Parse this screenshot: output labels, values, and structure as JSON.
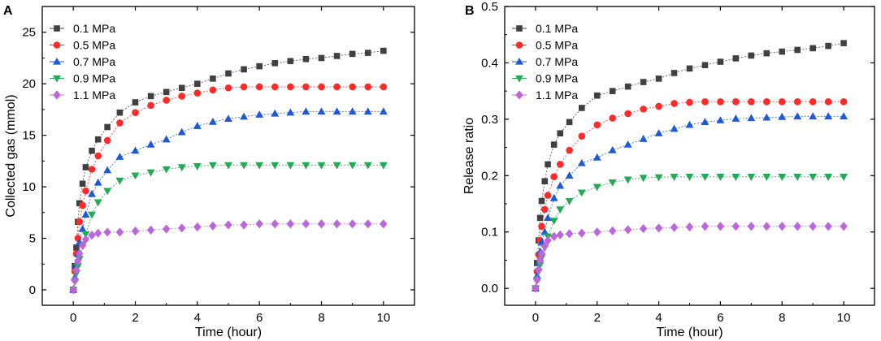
{
  "chart_data": [
    {
      "panel": "A",
      "type": "scatter",
      "xlabel": "Time (hour)",
      "ylabel": "Collected gas (mmol)",
      "xlim": [
        -1,
        11
      ],
      "ylim": [
        -1.5,
        27.5
      ],
      "xticks": [
        0,
        2,
        4,
        6,
        8,
        10
      ],
      "yticks": [
        0,
        5,
        10,
        15,
        20,
        25
      ],
      "x": [
        0,
        0.05,
        0.1,
        0.15,
        0.2,
        0.3,
        0.4,
        0.6,
        0.8,
        1.1,
        1.5,
        2,
        2.5,
        3,
        3.5,
        4,
        4.5,
        5,
        5.5,
        6,
        6.5,
        7,
        7.5,
        8,
        8.5,
        9,
        9.5,
        10
      ],
      "series": [
        {
          "name": "0.1 MPa",
          "color": "#404040",
          "marker": "square",
          "values": [
            0,
            2.3,
            4.1,
            6.6,
            8.4,
            10.3,
            11.9,
            13.5,
            14.6,
            15.8,
            17.2,
            18.2,
            18.8,
            19.2,
            19.6,
            20.0,
            20.5,
            21.0,
            21.4,
            21.7,
            22.0,
            22.2,
            22.4,
            22.5,
            22.7,
            22.9,
            23.0,
            23.2
          ]
        },
        {
          "name": "0.5 MPa",
          "color": "#ff2a2a",
          "marker": "circle",
          "values": [
            0,
            1.8,
            3.5,
            5.0,
            6.6,
            8.2,
            9.6,
            11.7,
            13.0,
            14.5,
            16.2,
            17.2,
            17.9,
            18.4,
            18.8,
            19.1,
            19.4,
            19.6,
            19.7,
            19.7,
            19.7,
            19.7,
            19.7,
            19.7,
            19.7,
            19.7,
            19.7,
            19.7
          ]
        },
        {
          "name": "0.7 MPa",
          "color": "#1e5ad6",
          "marker": "triangle-up",
          "values": [
            0,
            1.2,
            2.5,
            3.5,
            4.6,
            5.9,
            7.3,
            9.3,
            10.4,
            11.6,
            12.9,
            13.5,
            14.1,
            14.6,
            15.3,
            15.9,
            16.3,
            16.6,
            16.8,
            17.0,
            17.1,
            17.2,
            17.3,
            17.3,
            17.3,
            17.3,
            17.3,
            17.3
          ]
        },
        {
          "name": "0.9 MPa",
          "color": "#22aa55",
          "marker": "triangle-down",
          "values": [
            0,
            0.8,
            1.6,
            2.3,
            3.0,
            4.3,
            5.4,
            7.3,
            8.5,
            9.6,
            10.6,
            11.1,
            11.4,
            11.7,
            11.9,
            12.0,
            12.1,
            12.1,
            12.1,
            12.1,
            12.1,
            12.1,
            12.1,
            12.1,
            12.1,
            12.1,
            12.1,
            12.1
          ]
        },
        {
          "name": "1.1 MPa",
          "color": "#bb66dd",
          "marker": "diamond",
          "values": [
            0,
            0.9,
            1.9,
            2.8,
            3.5,
            4.3,
            4.9,
            5.3,
            5.5,
            5.6,
            5.6,
            5.7,
            5.8,
            5.9,
            6.0,
            6.1,
            6.2,
            6.3,
            6.3,
            6.4,
            6.4,
            6.4,
            6.4,
            6.4,
            6.4,
            6.4,
            6.4,
            6.4
          ]
        }
      ]
    },
    {
      "panel": "B",
      "type": "scatter",
      "xlabel": "Time (hour)",
      "ylabel": "Release ratio",
      "xlim": [
        -1,
        11
      ],
      "ylim": [
        -0.03,
        0.5
      ],
      "xticks": [
        0,
        2,
        4,
        6,
        8,
        10
      ],
      "yticks": [
        0.0,
        0.1,
        0.2,
        0.3,
        0.4,
        0.5
      ],
      "ytick_labels": [
        "0.0",
        "0.1",
        "0.2",
        "0.3",
        "0.4",
        "0.5"
      ],
      "x": [
        0,
        0.05,
        0.1,
        0.15,
        0.2,
        0.3,
        0.4,
        0.6,
        0.8,
        1.1,
        1.5,
        2,
        2.5,
        3,
        3.5,
        4,
        4.5,
        5,
        5.5,
        6,
        6.5,
        7,
        7.5,
        8,
        8.5,
        9,
        9.5,
        10
      ],
      "series": [
        {
          "name": "0.1 MPa",
          "color": "#404040",
          "marker": "square",
          "values": [
            0,
            0.045,
            0.085,
            0.125,
            0.155,
            0.19,
            0.22,
            0.255,
            0.275,
            0.295,
            0.32,
            0.342,
            0.35,
            0.358,
            0.366,
            0.372,
            0.382,
            0.39,
            0.396,
            0.402,
            0.408,
            0.413,
            0.417,
            0.42,
            0.423,
            0.426,
            0.43,
            0.435
          ]
        },
        {
          "name": "0.5 MPa",
          "color": "#ff2a2a",
          "marker": "circle",
          "values": [
            0,
            0.03,
            0.06,
            0.085,
            0.11,
            0.14,
            0.165,
            0.198,
            0.22,
            0.245,
            0.27,
            0.29,
            0.302,
            0.31,
            0.318,
            0.323,
            0.328,
            0.33,
            0.331,
            0.331,
            0.331,
            0.331,
            0.331,
            0.331,
            0.331,
            0.331,
            0.331,
            0.331
          ]
        },
        {
          "name": "0.7 MPa",
          "color": "#1e5ad6",
          "marker": "triangle-up",
          "values": [
            0,
            0.022,
            0.045,
            0.065,
            0.082,
            0.1,
            0.125,
            0.16,
            0.182,
            0.2,
            0.222,
            0.232,
            0.245,
            0.255,
            0.265,
            0.275,
            0.283,
            0.29,
            0.295,
            0.298,
            0.301,
            0.302,
            0.303,
            0.304,
            0.305,
            0.305,
            0.305,
            0.305
          ]
        },
        {
          "name": "0.9 MPa",
          "color": "#22aa55",
          "marker": "triangle-down",
          "values": [
            0,
            0.015,
            0.03,
            0.042,
            0.055,
            0.072,
            0.092,
            0.12,
            0.14,
            0.155,
            0.17,
            0.18,
            0.188,
            0.193,
            0.196,
            0.197,
            0.198,
            0.198,
            0.198,
            0.198,
            0.198,
            0.198,
            0.198,
            0.198,
            0.198,
            0.198,
            0.198,
            0.198
          ]
        },
        {
          "name": "1.1 MPa",
          "color": "#bb66dd",
          "marker": "diamond",
          "values": [
            0,
            0.015,
            0.033,
            0.05,
            0.062,
            0.075,
            0.085,
            0.092,
            0.095,
            0.097,
            0.098,
            0.1,
            0.102,
            0.104,
            0.106,
            0.107,
            0.108,
            0.109,
            0.11,
            0.11,
            0.11,
            0.11,
            0.11,
            0.11,
            0.11,
            0.11,
            0.11,
            0.11
          ]
        }
      ]
    }
  ]
}
